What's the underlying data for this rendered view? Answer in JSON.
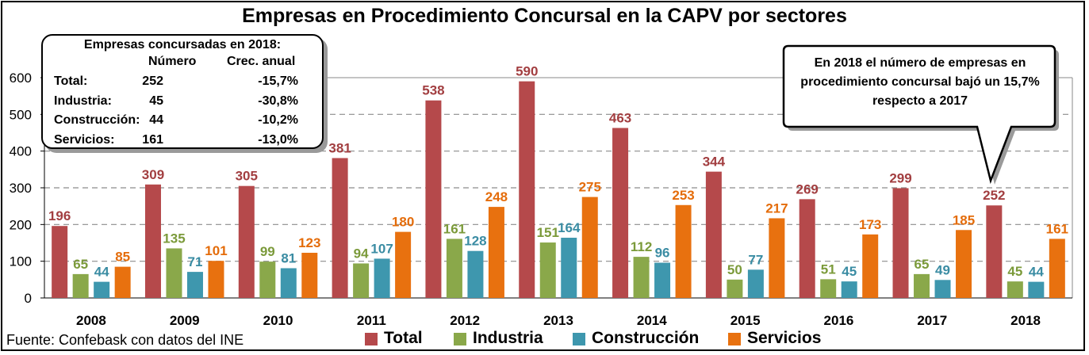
{
  "chart_data": {
    "type": "bar",
    "title": "Empresas en Procedimiento Concursal en la CAPV por sectores",
    "categories": [
      "2008",
      "2009",
      "2010",
      "2011",
      "2012",
      "2013",
      "2014",
      "2015",
      "2016",
      "2017",
      "2018"
    ],
    "series": [
      {
        "name": "Total",
        "color": "#B5494B",
        "label_color": "#A23E40",
        "values": [
          196,
          309,
          305,
          381,
          538,
          590,
          463,
          344,
          269,
          299,
          252
        ]
      },
      {
        "name": "Industria",
        "color": "#8AA84A",
        "label_color": "#7B9A3A",
        "values": [
          65,
          135,
          99,
          94,
          161,
          151,
          112,
          50,
          51,
          65,
          45
        ]
      },
      {
        "name": "Construcción",
        "color": "#3E97AE",
        "label_color": "#3A8CA3",
        "values": [
          44,
          71,
          81,
          107,
          128,
          164,
          96,
          77,
          45,
          49,
          44
        ]
      },
      {
        "name": "Servicios",
        "color": "#E8710F",
        "label_color": "#E46C0A",
        "values": [
          85,
          101,
          123,
          180,
          248,
          275,
          253,
          217,
          173,
          185,
          161
        ]
      }
    ],
    "ylim": [
      0,
      600
    ],
    "yticks": [
      0,
      100,
      200,
      300,
      400,
      500,
      600
    ],
    "grid": true,
    "legend_position": "bottom"
  },
  "summary_box": {
    "header": "Empresas concursadas en 2018:",
    "col_numero": "Número",
    "col_crec": "Crec. anual",
    "rows": [
      {
        "label": "Total:",
        "numero": "252",
        "crec": "-15,7%"
      },
      {
        "label": "Industria:",
        "numero": "45",
        "crec": "-30,8%"
      },
      {
        "label": "Construcción:",
        "numero": "44",
        "crec": "-10,2%"
      },
      {
        "label": "Servicios:",
        "numero": "161",
        "crec": "-13,0%"
      }
    ]
  },
  "callout": {
    "line1": "En 2018 el número de empresas en",
    "line2": "procedimiento concursal bajó un 15,7%",
    "line3": "respecto a 2017"
  },
  "source": "Fuente: Confebask con datos del INE"
}
